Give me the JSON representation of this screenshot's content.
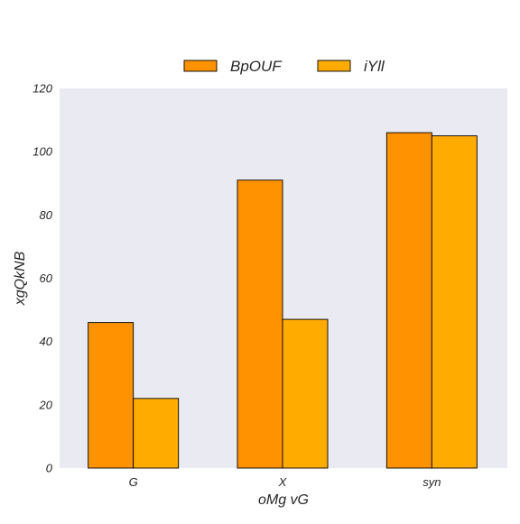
{
  "chart_data": {
    "type": "bar",
    "title": "",
    "xlabel": "oMg vG",
    "ylabel": "xgQkNB",
    "categories": [
      "G",
      "X",
      "syn"
    ],
    "series": [
      {
        "name": "BpOUF",
        "values": [
          46,
          91,
          106
        ],
        "color": "#ff9200"
      },
      {
        "name": "iYll",
        "values": [
          22,
          47,
          105
        ],
        "color": "#ffab00"
      }
    ],
    "ylim": [
      0,
      120
    ],
    "yticks": [
      0,
      20,
      40,
      60,
      80,
      100,
      120
    ],
    "grid": false,
    "legend_position": "top-center",
    "plot_background": "#eaeaf2",
    "bar_edge_color": "#000000"
  }
}
